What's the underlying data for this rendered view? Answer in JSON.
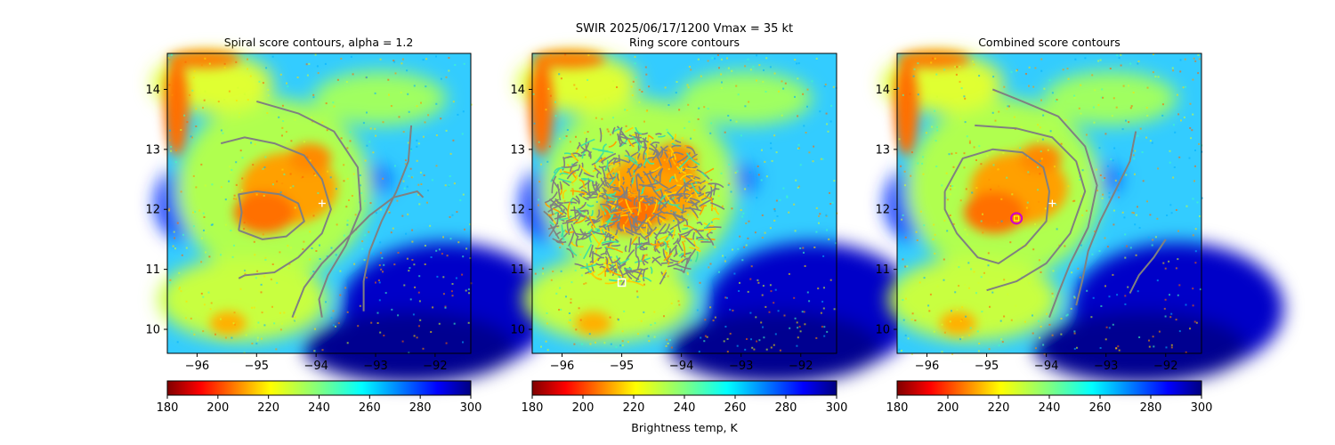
{
  "suptitle": {
    "line1": "SWIR  2025/06/17/1200    Vmax = 35 kt"
  },
  "colorbar_label": "Brightness temp, K",
  "colors": {
    "contour": "#808080",
    "center_marker": "#ffffff",
    "combined_marker_ring": "#cc00cc",
    "combined_marker_inner": "#ffff00"
  },
  "chart_data": [
    {
      "type": "heatmap",
      "title": "Spiral score contours, alpha =  1.2",
      "xlim": [
        -96.5,
        -91.4
      ],
      "ylim": [
        9.6,
        14.6
      ],
      "xticks": [
        -96,
        -95,
        -94,
        -93,
        -92
      ],
      "yticks": [
        10,
        11,
        12,
        13,
        14
      ],
      "xtick_labels": [
        "−96",
        "−95",
        "−94",
        "−93",
        "−92"
      ],
      "ytick_labels": [
        "10",
        "11",
        "12",
        "13",
        "14"
      ],
      "colorbar": {
        "range": [
          180,
          300
        ],
        "ticks": [
          180,
          200,
          220,
          240,
          260,
          280,
          300
        ],
        "tick_labels": [
          "180",
          "200",
          "220",
          "240",
          "260",
          "280",
          "300"
        ],
        "colormap": "jet_r"
      },
      "center_marker": {
        "x": -93.9,
        "y": 12.1
      },
      "contours": [
        [
          [
            -95.3,
            11.65
          ],
          [
            -94.9,
            11.5
          ],
          [
            -94.5,
            11.55
          ],
          [
            -94.2,
            11.8
          ],
          [
            -94.3,
            12.1
          ],
          [
            -94.6,
            12.25
          ],
          [
            -95.0,
            12.3
          ],
          [
            -95.3,
            12.25
          ],
          [
            -95.25,
            11.95
          ],
          [
            -95.3,
            11.65
          ]
        ],
        [
          [
            -95.6,
            13.1
          ],
          [
            -95.2,
            13.2
          ],
          [
            -94.7,
            13.1
          ],
          [
            -94.2,
            12.9
          ],
          [
            -93.9,
            12.5
          ],
          [
            -93.75,
            12.0
          ],
          [
            -93.9,
            11.6
          ],
          [
            -94.3,
            11.2
          ],
          [
            -94.7,
            10.95
          ],
          [
            -95.2,
            10.9
          ],
          [
            -95.3,
            10.85
          ]
        ],
        [
          [
            -95.0,
            13.8
          ],
          [
            -94.3,
            13.6
          ],
          [
            -93.7,
            13.3
          ],
          [
            -93.3,
            12.7
          ],
          [
            -93.25,
            12.0
          ],
          [
            -93.5,
            11.4
          ],
          [
            -93.8,
            10.9
          ],
          [
            -93.95,
            10.5
          ],
          [
            -93.9,
            10.2
          ]
        ],
        [
          [
            -92.4,
            13.4
          ],
          [
            -92.45,
            12.8
          ],
          [
            -92.65,
            12.3
          ],
          [
            -92.9,
            11.8
          ],
          [
            -93.1,
            11.3
          ],
          [
            -93.2,
            10.8
          ],
          [
            -93.2,
            10.3
          ]
        ],
        [
          [
            -94.4,
            10.2
          ],
          [
            -94.2,
            10.7
          ],
          [
            -93.9,
            11.1
          ],
          [
            -93.5,
            11.5
          ],
          [
            -93.1,
            11.9
          ],
          [
            -92.7,
            12.2
          ],
          [
            -92.3,
            12.3
          ],
          [
            -92.2,
            12.2
          ]
        ]
      ]
    },
    {
      "type": "heatmap",
      "title": "Ring score contours",
      "xlim": [
        -96.5,
        -91.4
      ],
      "ylim": [
        9.6,
        14.6
      ],
      "xticks": [
        -96,
        -95,
        -94,
        -93,
        -92
      ],
      "yticks": [
        10,
        11,
        12,
        13,
        14
      ],
      "xtick_labels": [
        "−96",
        "−95",
        "−94",
        "−93",
        "−92"
      ],
      "ytick_labels": [
        "10",
        "11",
        "12",
        "13",
        "14"
      ],
      "colorbar": {
        "range": [
          180,
          300
        ],
        "ticks": [
          180,
          200,
          220,
          240,
          260,
          280,
          300
        ],
        "tick_labels": [
          "180",
          "200",
          "220",
          "240",
          "260",
          "280",
          "300"
        ],
        "colormap": "jet_r"
      },
      "ring_region": {
        "x": -94.8,
        "y": 12.05,
        "rx": 1.45,
        "ry": 1.3
      },
      "square_marker": {
        "x": -95.0,
        "y": 10.78
      }
    },
    {
      "type": "heatmap",
      "title": "Combined score contours",
      "xlim": [
        -96.5,
        -91.4
      ],
      "ylim": [
        9.6,
        14.6
      ],
      "xticks": [
        -96,
        -95,
        -94,
        -93,
        -92
      ],
      "yticks": [
        10,
        11,
        12,
        13,
        14
      ],
      "xtick_labels": [
        "−96",
        "−95",
        "−94",
        "−93",
        "−92"
      ],
      "ytick_labels": [
        "10",
        "11",
        "12",
        "13",
        "14"
      ],
      "colorbar": {
        "range": [
          180,
          300
        ],
        "ticks": [
          180,
          200,
          220,
          240,
          260,
          280,
          300
        ],
        "tick_labels": [
          "180",
          "200",
          "220",
          "240",
          "260",
          "280",
          "300"
        ],
        "colormap": "jet_r"
      },
      "center_marker": {
        "x": -93.9,
        "y": 12.1
      },
      "best_marker": {
        "x": -94.5,
        "y": 11.85
      },
      "contours": [
        [
          [
            -95.7,
            12.3
          ],
          [
            -95.4,
            12.85
          ],
          [
            -94.9,
            13.0
          ],
          [
            -94.4,
            12.95
          ],
          [
            -94.05,
            12.7
          ],
          [
            -93.95,
            12.3
          ],
          [
            -94.0,
            11.8
          ],
          [
            -94.35,
            11.4
          ],
          [
            -94.8,
            11.1
          ],
          [
            -95.15,
            11.2
          ],
          [
            -95.5,
            11.6
          ],
          [
            -95.7,
            12.0
          ],
          [
            -95.7,
            12.3
          ]
        ],
        [
          [
            -95.2,
            13.4
          ],
          [
            -94.5,
            13.35
          ],
          [
            -93.9,
            13.2
          ],
          [
            -93.5,
            12.8
          ],
          [
            -93.35,
            12.3
          ],
          [
            -93.6,
            11.6
          ],
          [
            -94.0,
            11.1
          ],
          [
            -94.5,
            10.8
          ],
          [
            -95.0,
            10.65
          ]
        ],
        [
          [
            -94.9,
            14.0
          ],
          [
            -94.4,
            13.8
          ],
          [
            -93.8,
            13.55
          ],
          [
            -93.35,
            13.05
          ],
          [
            -93.15,
            12.4
          ],
          [
            -93.3,
            11.7
          ],
          [
            -93.6,
            11.1
          ],
          [
            -93.8,
            10.6
          ],
          [
            -93.95,
            10.2
          ]
        ],
        [
          [
            -92.5,
            13.3
          ],
          [
            -92.6,
            12.8
          ],
          [
            -92.85,
            12.3
          ],
          [
            -93.1,
            11.8
          ],
          [
            -93.3,
            11.3
          ],
          [
            -93.4,
            10.8
          ],
          [
            -93.5,
            10.4
          ]
        ],
        [
          [
            -92.6,
            10.6
          ],
          [
            -92.45,
            10.9
          ],
          [
            -92.2,
            11.2
          ],
          [
            -92.0,
            11.5
          ]
        ]
      ]
    }
  ]
}
